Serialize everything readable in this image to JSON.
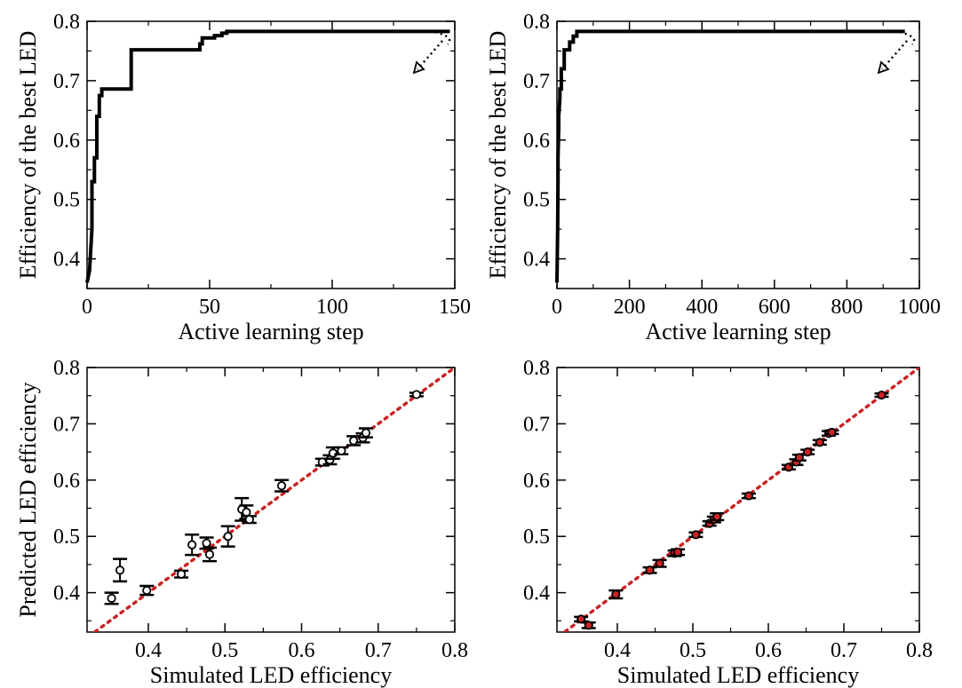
{
  "chart_data": [
    {
      "type": "line",
      "xlabel": "Active learning step",
      "ylabel": "Efficiency of the best LED",
      "xlim": [
        0,
        150
      ],
      "ylim": [
        0.35,
        0.8
      ],
      "xticks": [
        0,
        50,
        100,
        150
      ],
      "yticks": [
        0.4,
        0.5,
        0.6,
        0.7,
        0.8
      ],
      "tick_labels_x": [
        "0",
        "50",
        "100",
        "150"
      ],
      "tick_labels_y": [
        "0.4",
        "0.5",
        "0.6",
        "0.7",
        "0.8"
      ],
      "series": [
        {
          "x": [
            0,
            1,
            2,
            2,
            3,
            3,
            4,
            4,
            5,
            5,
            6,
            6,
            18,
            18,
            46,
            46,
            47,
            47,
            52,
            52,
            55,
            55,
            57,
            57,
            148
          ],
          "y": [
            0.36,
            0.38,
            0.45,
            0.53,
            0.53,
            0.57,
            0.57,
            0.64,
            0.64,
            0.675,
            0.675,
            0.686,
            0.686,
            0.752,
            0.752,
            0.762,
            0.762,
            0.772,
            0.772,
            0.776,
            0.776,
            0.78,
            0.78,
            0.783,
            0.783
          ],
          "color": "#000000"
        }
      ],
      "annotation": "dotted-arrow"
    },
    {
      "type": "line",
      "xlabel": "Active learning step",
      "ylabel": "Efficiency of the best LED",
      "xlim": [
        0,
        1000
      ],
      "ylim": [
        0.35,
        0.8
      ],
      "xticks": [
        0,
        200,
        400,
        600,
        800,
        1000
      ],
      "yticks": [
        0.4,
        0.5,
        0.6,
        0.7,
        0.8
      ],
      "tick_labels_x": [
        "0",
        "200",
        "400",
        "600",
        "800",
        "1000"
      ],
      "tick_labels_y": [
        "0.4",
        "0.5",
        "0.6",
        "0.7",
        "0.8"
      ],
      "series": [
        {
          "x": [
            0,
            2,
            3,
            3,
            5,
            5,
            8,
            8,
            12,
            12,
            20,
            20,
            35,
            35,
            45,
            45,
            55,
            55,
            960
          ],
          "y": [
            0.36,
            0.45,
            0.53,
            0.57,
            0.62,
            0.64,
            0.67,
            0.686,
            0.686,
            0.72,
            0.72,
            0.752,
            0.752,
            0.765,
            0.765,
            0.775,
            0.775,
            0.783,
            0.783
          ],
          "color": "#000000"
        }
      ],
      "annotation": "dotted-arrow"
    },
    {
      "type": "scatter",
      "xlabel": "Simulated LED efficiency",
      "ylabel": "Predicted LED efficiency",
      "xlim": [
        0.32,
        0.8
      ],
      "ylim": [
        0.33,
        0.8
      ],
      "xticks": [
        0.4,
        0.5,
        0.6,
        0.7,
        0.8
      ],
      "yticks": [
        0.4,
        0.5,
        0.6,
        0.7,
        0.8
      ],
      "tick_labels_x": [
        "0.4",
        "0.5",
        "0.6",
        "0.7",
        "0.8"
      ],
      "tick_labels_y": [
        "0.4",
        "0.5",
        "0.6",
        "0.7",
        "0.8"
      ],
      "error_bars": true,
      "marker_fill": "#ffffff",
      "diagonal": {
        "color": "#cc2222",
        "style": "dotted"
      },
      "points": [
        {
          "x": 0.352,
          "y": 0.39,
          "err": 0.01
        },
        {
          "x": 0.363,
          "y": 0.44,
          "err": 0.02
        },
        {
          "x": 0.398,
          "y": 0.404,
          "err": 0.008
        },
        {
          "x": 0.443,
          "y": 0.433,
          "err": 0.006
        },
        {
          "x": 0.457,
          "y": 0.485,
          "err": 0.018
        },
        {
          "x": 0.476,
          "y": 0.488,
          "err": 0.01
        },
        {
          "x": 0.48,
          "y": 0.468,
          "err": 0.012
        },
        {
          "x": 0.504,
          "y": 0.5,
          "err": 0.018
        },
        {
          "x": 0.522,
          "y": 0.548,
          "err": 0.02
        },
        {
          "x": 0.528,
          "y": 0.543,
          "err": 0.012
        },
        {
          "x": 0.532,
          "y": 0.53,
          "err": 0.006
        },
        {
          "x": 0.574,
          "y": 0.59,
          "err": 0.01
        },
        {
          "x": 0.627,
          "y": 0.632,
          "err": 0.006
        },
        {
          "x": 0.637,
          "y": 0.636,
          "err": 0.008
        },
        {
          "x": 0.641,
          "y": 0.648,
          "err": 0.01
        },
        {
          "x": 0.652,
          "y": 0.652,
          "err": 0.006
        },
        {
          "x": 0.668,
          "y": 0.67,
          "err": 0.008
        },
        {
          "x": 0.68,
          "y": 0.675,
          "err": 0.008
        },
        {
          "x": 0.684,
          "y": 0.684,
          "err": 0.008
        },
        {
          "x": 0.75,
          "y": 0.752,
          "err": 0.003
        }
      ]
    },
    {
      "type": "scatter",
      "xlabel": "Simulated LED efficiency",
      "ylabel": "",
      "xlim": [
        0.32,
        0.8
      ],
      "ylim": [
        0.33,
        0.8
      ],
      "xticks": [
        0.4,
        0.5,
        0.6,
        0.7,
        0.8
      ],
      "yticks": [
        0.4,
        0.5,
        0.6,
        0.7,
        0.8
      ],
      "tick_labels_x": [
        "0.4",
        "0.5",
        "0.6",
        "0.7",
        "0.8"
      ],
      "tick_labels_y": [
        "0.4",
        "0.5",
        "0.6",
        "0.7",
        "0.8"
      ],
      "error_bars": true,
      "marker_fill": "#cc2222",
      "diagonal": {
        "color": "#cc2222",
        "style": "dotted"
      },
      "points": [
        {
          "x": 0.352,
          "y": 0.353,
          "err": 0.004
        },
        {
          "x": 0.362,
          "y": 0.342,
          "err": 0.005
        },
        {
          "x": 0.398,
          "y": 0.397,
          "err": 0.007
        },
        {
          "x": 0.443,
          "y": 0.44,
          "err": 0.005
        },
        {
          "x": 0.456,
          "y": 0.452,
          "err": 0.006
        },
        {
          "x": 0.476,
          "y": 0.47,
          "err": 0.005
        },
        {
          "x": 0.48,
          "y": 0.472,
          "err": 0.005
        },
        {
          "x": 0.504,
          "y": 0.503,
          "err": 0.004
        },
        {
          "x": 0.522,
          "y": 0.523,
          "err": 0.004
        },
        {
          "x": 0.528,
          "y": 0.53,
          "err": 0.005
        },
        {
          "x": 0.532,
          "y": 0.535,
          "err": 0.006
        },
        {
          "x": 0.574,
          "y": 0.572,
          "err": 0.004
        },
        {
          "x": 0.627,
          "y": 0.623,
          "err": 0.004
        },
        {
          "x": 0.637,
          "y": 0.632,
          "err": 0.005
        },
        {
          "x": 0.641,
          "y": 0.64,
          "err": 0.005
        },
        {
          "x": 0.652,
          "y": 0.65,
          "err": 0.004
        },
        {
          "x": 0.668,
          "y": 0.667,
          "err": 0.004
        },
        {
          "x": 0.68,
          "y": 0.683,
          "err": 0.004
        },
        {
          "x": 0.684,
          "y": 0.685,
          "err": 0.003
        },
        {
          "x": 0.75,
          "y": 0.751,
          "err": 0.003
        }
      ]
    }
  ]
}
